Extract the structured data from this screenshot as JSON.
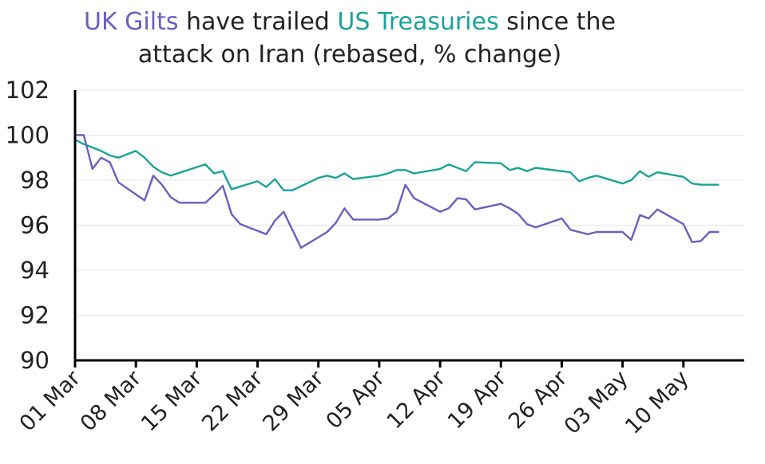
{
  "chart_data": {
    "type": "line",
    "title": {
      "line1": [
        {
          "text": "UK Gilts",
          "color": "#6e5cc0"
        },
        {
          "text": " have trailed ",
          "color": "#222222"
        },
        {
          "text": "US Treasuries",
          "color": "#1aa39a"
        },
        {
          "text": " since the",
          "color": "#222222"
        }
      ],
      "line2": "attack on Iran (rebased, % change)"
    },
    "xlabel": "",
    "ylabel": "",
    "ylim": [
      90,
      102
    ],
    "yticks": [
      90,
      92,
      94,
      96,
      98,
      100,
      102
    ],
    "xlim": [
      0,
      77
    ],
    "x_ticks": [
      {
        "label": "01 Mar",
        "day": 0
      },
      {
        "label": "08 Mar",
        "day": 7
      },
      {
        "label": "15 Mar",
        "day": 14
      },
      {
        "label": "22 Mar",
        "day": 21
      },
      {
        "label": "29 Mar",
        "day": 28
      },
      {
        "label": "05 Apr",
        "day": 35
      },
      {
        "label": "12 Apr",
        "day": 42
      },
      {
        "label": "19 Apr",
        "day": 49
      },
      {
        "label": "26 Apr",
        "day": 56
      },
      {
        "label": "03 May",
        "day": 63
      },
      {
        "label": "10 May",
        "day": 70
      }
    ],
    "grid": true,
    "legend": "none",
    "series": [
      {
        "color": "#1aa39a",
        "points": [
          [
            0,
            99.8
          ],
          [
            1,
            99.6
          ],
          [
            2,
            99.45
          ],
          [
            3,
            99.3
          ],
          [
            4,
            99.1
          ],
          [
            5,
            99.0
          ],
          [
            7,
            99.3
          ],
          [
            8,
            99.0
          ],
          [
            9,
            98.6
          ],
          [
            10,
            98.35
          ],
          [
            11,
            98.2
          ],
          [
            15,
            98.7
          ],
          [
            16,
            98.3
          ],
          [
            17,
            98.4
          ],
          [
            18,
            97.6
          ],
          [
            21,
            97.95
          ],
          [
            22,
            97.7
          ],
          [
            23,
            98.05
          ],
          [
            24,
            97.55
          ],
          [
            25,
            97.55
          ],
          [
            28,
            98.1
          ],
          [
            29,
            98.2
          ],
          [
            30,
            98.1
          ],
          [
            31,
            98.3
          ],
          [
            32,
            98.05
          ],
          [
            35,
            98.2
          ],
          [
            36,
            98.3
          ],
          [
            37,
            98.45
          ],
          [
            38,
            98.45
          ],
          [
            39,
            98.3
          ],
          [
            42,
            98.5
          ],
          [
            43,
            98.7
          ],
          [
            44,
            98.55
          ],
          [
            45,
            98.4
          ],
          [
            46,
            98.8
          ],
          [
            49,
            98.75
          ],
          [
            50,
            98.45
          ],
          [
            51,
            98.55
          ],
          [
            52,
            98.4
          ],
          [
            53,
            98.55
          ],
          [
            56,
            98.4
          ],
          [
            57,
            98.35
          ],
          [
            58,
            97.95
          ],
          [
            59,
            98.1
          ],
          [
            60,
            98.2
          ],
          [
            63,
            97.85
          ],
          [
            64,
            98.0
          ],
          [
            65,
            98.4
          ],
          [
            66,
            98.15
          ],
          [
            67,
            98.35
          ],
          [
            70,
            98.15
          ],
          [
            71,
            97.85
          ],
          [
            72,
            97.8
          ],
          [
            73,
            97.8
          ],
          [
            74,
            97.8
          ]
        ]
      },
      {
        "color": "#6e5cc0",
        "points": [
          [
            0,
            100.0
          ],
          [
            1,
            100.0
          ],
          [
            2,
            98.5
          ],
          [
            3,
            99.0
          ],
          [
            4,
            98.8
          ],
          [
            5,
            97.9
          ],
          [
            8,
            97.1
          ],
          [
            9,
            98.2
          ],
          [
            10,
            97.8
          ],
          [
            11,
            97.25
          ],
          [
            12,
            97.0
          ],
          [
            15,
            97.0
          ],
          [
            16,
            97.35
          ],
          [
            17,
            97.75
          ],
          [
            18,
            96.5
          ],
          [
            19,
            96.05
          ],
          [
            22,
            95.6
          ],
          [
            23,
            96.2
          ],
          [
            24,
            96.6
          ],
          [
            25,
            95.8
          ],
          [
            26,
            95.0
          ],
          [
            29,
            95.7
          ],
          [
            30,
            96.1
          ],
          [
            31,
            96.75
          ],
          [
            32,
            96.25
          ],
          [
            35,
            96.25
          ],
          [
            36,
            96.3
          ],
          [
            37,
            96.6
          ],
          [
            38,
            97.8
          ],
          [
            39,
            97.2
          ],
          [
            42,
            96.6
          ],
          [
            43,
            96.75
          ],
          [
            44,
            97.2
          ],
          [
            45,
            97.15
          ],
          [
            46,
            96.7
          ],
          [
            49,
            96.95
          ],
          [
            50,
            96.75
          ],
          [
            51,
            96.5
          ],
          [
            52,
            96.05
          ],
          [
            53,
            95.9
          ],
          [
            56,
            96.3
          ],
          [
            57,
            95.8
          ],
          [
            58,
            95.7
          ],
          [
            59,
            95.6
          ],
          [
            60,
            95.7
          ],
          [
            63,
            95.7
          ],
          [
            64,
            95.35
          ],
          [
            65,
            96.45
          ],
          [
            66,
            96.3
          ],
          [
            67,
            96.7
          ],
          [
            70,
            96.05
          ],
          [
            71,
            95.25
          ],
          [
            72,
            95.3
          ],
          [
            73,
            95.7
          ],
          [
            74,
            95.7
          ]
        ]
      }
    ]
  }
}
